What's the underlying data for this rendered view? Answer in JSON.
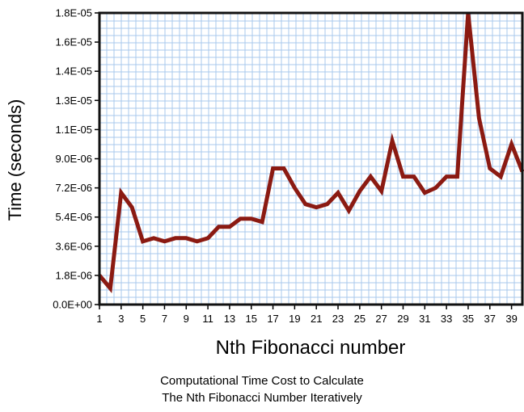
{
  "chart_data": {
    "type": "line",
    "xlabel": "Nth Fibonacci number",
    "ylabel": "Time (seconds)",
    "x": [
      1,
      2,
      3,
      4,
      5,
      6,
      7,
      8,
      9,
      10,
      11,
      12,
      13,
      14,
      15,
      16,
      17,
      18,
      19,
      20,
      21,
      22,
      23,
      24,
      25,
      26,
      27,
      28,
      29,
      30,
      31,
      32,
      33,
      34,
      35,
      36,
      37,
      38,
      39,
      40
    ],
    "xlim": [
      1,
      40
    ],
    "x_tick_labels": [
      "1",
      "3",
      "5",
      "7",
      "9",
      "11",
      "13",
      "15",
      "17",
      "19",
      "21",
      "23",
      "25",
      "27",
      "29",
      "31",
      "33",
      "35",
      "37",
      "39"
    ],
    "ylim": [
      0,
      1.8e-05
    ],
    "y_tick_labels": [
      "0.0E+00",
      "1.8E-06",
      "3.6E-06",
      "5.4E-06",
      "7.2E-06",
      "9.0E-06",
      "1.1E-05",
      "1.3E-05",
      "1.4E-05",
      "1.6E-05",
      "1.8E-05"
    ],
    "grid": true,
    "series": [
      {
        "values": [
          1.8e-06,
          1e-06,
          6.9e-06,
          6e-06,
          3.9e-06,
          4.1e-06,
          3.9e-06,
          4.1e-06,
          4.1e-06,
          3.9e-06,
          4.1e-06,
          4.8e-06,
          4.8e-06,
          5.3e-06,
          5.3e-06,
          5.1e-06,
          8.4e-06,
          8.4e-06,
          7.2e-06,
          6.2e-06,
          6e-06,
          6.2e-06,
          6.9e-06,
          5.8e-06,
          7e-06,
          7.9e-06,
          7e-06,
          1.01e-05,
          7.9e-06,
          7.9e-06,
          6.9e-06,
          7.2e-06,
          7.9e-06,
          7.9e-06,
          1.8e-05,
          1.15e-05,
          8.4e-06,
          7.9e-06,
          9.9e-06,
          8.2e-06
        ],
        "color": "#8b1a12"
      }
    ],
    "caption_lines": [
      "Computational Time Cost to Calculate",
      "The Nth Fibonacci Number Iteratively"
    ]
  }
}
